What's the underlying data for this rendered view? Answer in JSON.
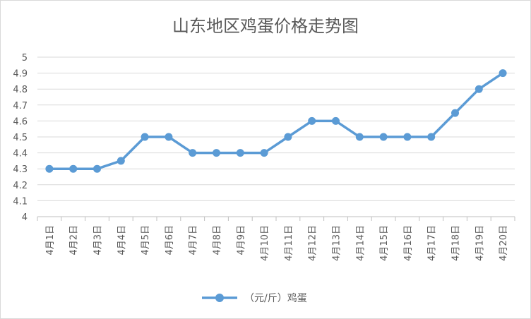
{
  "chart_data": {
    "type": "line",
    "title": "山东地区鸡蛋价格走势图",
    "categories": [
      "4月1日",
      "4月2日",
      "4月3日",
      "4月4日",
      "4月5日",
      "4月6日",
      "4月7日",
      "4月8日",
      "4月9日",
      "4月10日",
      "4月11日",
      "4月12日",
      "4月13日",
      "4月14日",
      "4月15日",
      "4月16日",
      "4月17日",
      "4月18日",
      "4月19日",
      "4月20日"
    ],
    "series": [
      {
        "name": "（元/斤）鸡蛋",
        "values": [
          4.3,
          4.3,
          4.3,
          4.35,
          4.5,
          4.5,
          4.4,
          4.4,
          4.4,
          4.4,
          4.5,
          4.6,
          4.6,
          4.5,
          4.5,
          4.5,
          4.5,
          4.65,
          4.8,
          4.9
        ],
        "color": "#5b9bd5"
      }
    ],
    "ylim": [
      4,
      5
    ],
    "yticks": [
      "4",
      "4.1",
      "4.2",
      "4.3",
      "4.4",
      "4.5",
      "4.6",
      "4.7",
      "4.8",
      "4.9",
      "5"
    ],
    "grid": true,
    "legend": "bottom-center",
    "xlabel": "",
    "ylabel": ""
  }
}
